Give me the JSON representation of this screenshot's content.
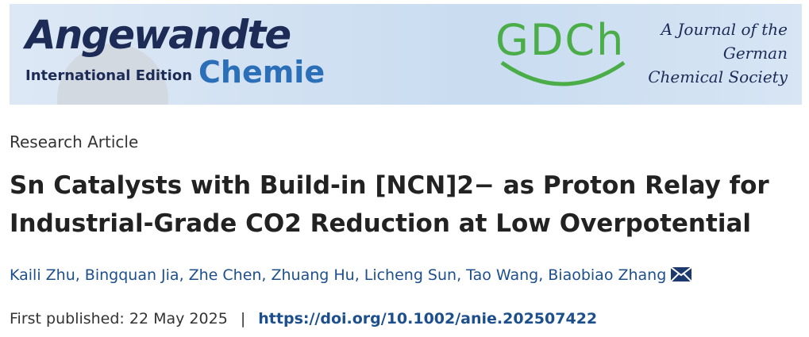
{
  "banner": {
    "journal_name": "Angewandte",
    "journal_subname": "Chemie",
    "edition": "International Edition",
    "society_logo": "GDCh",
    "society_lines": [
      "A Journal of the",
      "German",
      "Chemical Society"
    ]
  },
  "article": {
    "type": "Research Article",
    "title_lines": [
      "Sn Catalysts with Build-in [NCN]2− as Proton Relay for",
      "Industrial-Grade CO2 Reduction at Low Overpotential"
    ],
    "authors": [
      "Kaili Zhu,",
      "Bingquan Jia,",
      "Zhe Chen,",
      "Zhuang Hu,",
      "Licheng Sun,",
      "Tao Wang,",
      "Biaobiao Zhang"
    ],
    "published_label": "First published:",
    "published_date": "22 May 2025",
    "separator": "|",
    "doi": "https://doi.org/10.1002/anie.202507422"
  }
}
